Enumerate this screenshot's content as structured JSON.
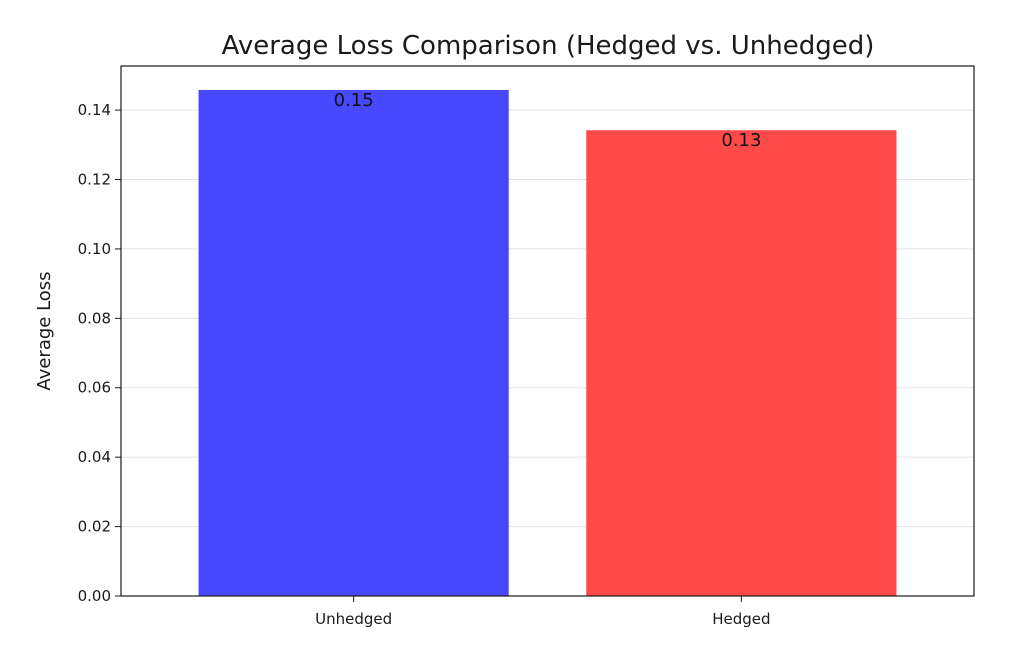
{
  "chart_data": {
    "type": "bar",
    "title": "Average Loss Comparison (Hedged vs. Unhedged)",
    "xlabel": "",
    "ylabel": "Average Loss",
    "categories": [
      "Unhedged",
      "Hedged"
    ],
    "values": [
      0.1458,
      0.1342
    ],
    "data_labels": [
      "0.15",
      "0.13"
    ],
    "colors": [
      "#4848ff",
      "#ff4a4a"
    ],
    "ylim": [
      0,
      0.1527
    ],
    "yticks": [
      0.0,
      0.02,
      0.04,
      0.06,
      0.08,
      0.1,
      0.12,
      0.14
    ],
    "ytick_labels": [
      "0.00",
      "0.02",
      "0.04",
      "0.06",
      "0.08",
      "0.10",
      "0.12",
      "0.14"
    ],
    "grid": "y-axis"
  }
}
